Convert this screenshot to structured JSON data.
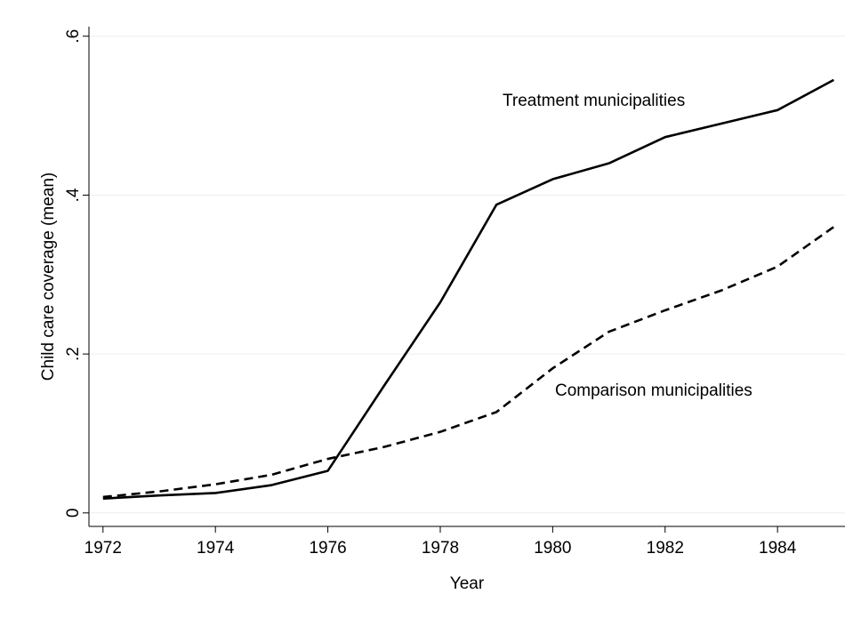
{
  "chart_data": {
    "type": "line",
    "x_label": "Year",
    "y_label": "Child care coverage (mean)",
    "x": [
      1972,
      1973,
      1974,
      1975,
      1976,
      1977,
      1978,
      1979,
      1980,
      1981,
      1982,
      1983,
      1984,
      1985
    ],
    "series": [
      {
        "name": "Treatment municipalities",
        "color": "#000000",
        "linestyle": "solid",
        "values": [
          0.018,
          0.022,
          0.025,
          0.035,
          0.053,
          0.16,
          0.265,
          0.388,
          0.42,
          0.44,
          0.473,
          0.49,
          0.507,
          0.545
        ]
      },
      {
        "name": "Comparison municipalities",
        "color": "#000000",
        "linestyle": "dashed",
        "values": [
          0.02,
          0.027,
          0.036,
          0.048,
          0.068,
          0.083,
          0.102,
          0.127,
          0.182,
          0.228,
          0.255,
          0.28,
          0.31,
          0.36
        ]
      }
    ],
    "xlim": [
      1971.75,
      1985.2
    ],
    "xticks": [
      1972,
      1974,
      1976,
      1978,
      1980,
      1982,
      1984
    ],
    "ylim": [
      -0.017,
      0.612
    ],
    "yticks": [
      0,
      {
        "value": 0.2,
        "label": ".2"
      },
      {
        "value": 0.4,
        "label": ".4"
      },
      {
        "value": 0.6,
        "label": ".6"
      }
    ],
    "grid": true
  }
}
